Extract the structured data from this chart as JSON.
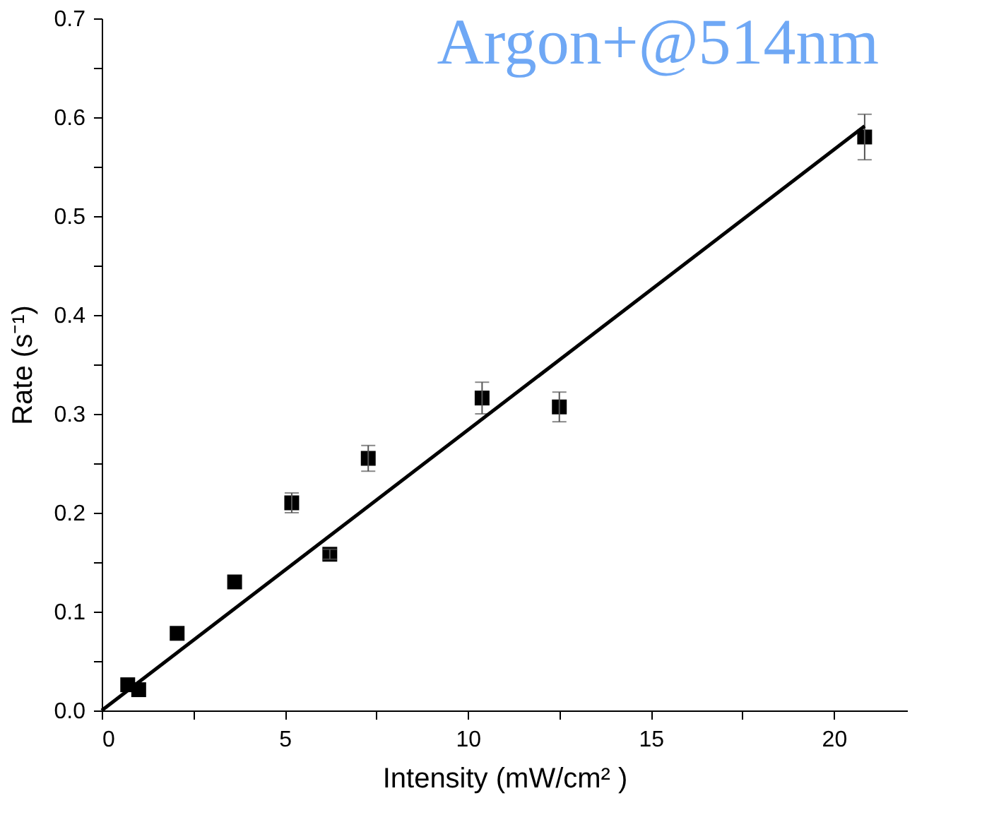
{
  "chart_data": {
    "type": "scatter",
    "title": "Argon+@514nm",
    "xlabel": "Intensity (mW/cm² )",
    "ylabel": "Rate (s⁻¹)",
    "xlim": [
      0,
      22
    ],
    "ylim": [
      0,
      0.7
    ],
    "xticks": [
      0,
      {
        "value": 2.5,
        "label": null
      },
      5,
      {
        "value": 7.5,
        "label": null
      },
      10,
      {
        "value": 12.5,
        "label": null
      },
      15,
      {
        "value": 17.5,
        "label": null
      },
      20
    ],
    "yticks": [
      {
        "value": 0,
        "label": "0.0"
      },
      {
        "value": 0.05,
        "label": null
      },
      0.1,
      {
        "value": 0.15,
        "label": null
      },
      0.2,
      {
        "value": 0.25,
        "label": null
      },
      0.3,
      {
        "value": 0.35,
        "label": null
      },
      0.4,
      {
        "value": 0.45,
        "label": null
      },
      0.5,
      {
        "value": 0.55,
        "label": null
      },
      0.6,
      {
        "value": 0.65,
        "label": null
      },
      0.7
    ],
    "grid": false,
    "series": [
      {
        "type": "scatter",
        "color": "#000000",
        "marker": "square",
        "x": [
          0.71,
          1.01,
          2.06,
          3.63,
          5.19,
          6.23,
          7.28,
          10.39,
          12.5,
          20.84
        ],
        "values": [
          0.026,
          0.021,
          0.078,
          0.13,
          0.21,
          0.158,
          0.255,
          0.316,
          0.307,
          0.58
        ],
        "errors": [
          null,
          null,
          null,
          null,
          0.01,
          0.005,
          0.013,
          0.016,
          0.015,
          0.023
        ]
      },
      {
        "type": "line",
        "color": "#000000",
        "line_style": "solid",
        "marker": "none",
        "x": [
          0,
          20.84
        ],
        "values": [
          0,
          0.591
        ]
      }
    ]
  }
}
